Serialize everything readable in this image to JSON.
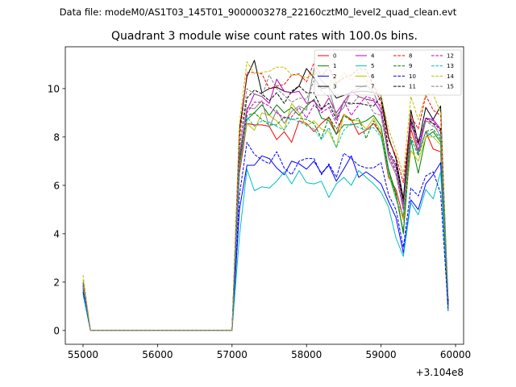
{
  "suptitle": "Data file: modeM0/AS1T03_145T01_9000003278_22160cztM0_level2_quad_clean.evt",
  "chart_data": {
    "type": "line",
    "title": "Quadrant 3 module wise count rates with 100.0s bins.",
    "xlabel": "",
    "ylabel": "",
    "x_offset_text": "+3.104e8",
    "xlim": [
      54762,
      60108
    ],
    "ylim": [
      -0.57,
      11.73
    ],
    "xticks": [
      55000,
      56000,
      57000,
      58000,
      59000,
      60000
    ],
    "yticks": [
      0,
      2,
      4,
      6,
      8,
      10
    ],
    "grid": false,
    "legend_position": "top-right",
    "legend_columns": 4,
    "x": [
      55000,
      55100,
      55200,
      55300,
      55400,
      55500,
      55600,
      55700,
      55800,
      55900,
      56000,
      56100,
      56200,
      56300,
      56400,
      56500,
      56600,
      56700,
      56800,
      56900,
      57000,
      57100,
      57200,
      57300,
      57400,
      57500,
      57600,
      57700,
      57800,
      57900,
      58000,
      58100,
      58200,
      58300,
      58400,
      58500,
      58600,
      58700,
      58800,
      58900,
      59000,
      59100,
      59200,
      59300,
      59400,
      59500,
      59600,
      59700,
      59800,
      59900
    ],
    "series": [
      {
        "name": "0",
        "color": "#ff0000",
        "dash": false,
        "values": [
          1.7,
          0,
          0,
          0,
          0,
          0,
          0,
          0,
          0,
          0,
          0,
          0,
          0,
          0,
          0,
          0,
          0,
          0,
          0,
          0,
          0,
          6.5,
          8.56,
          8.5,
          8.5,
          8.44,
          7.89,
          8.22,
          7.78,
          8.67,
          8.56,
          8.22,
          8.56,
          8.83,
          8.11,
          8.94,
          8.72,
          8.11,
          8.28,
          8.56,
          8.11,
          6.33,
          5.83,
          4.67,
          8.33,
          7.33,
          8.22,
          7.5,
          7.39,
          1.0
        ]
      },
      {
        "name": "1",
        "color": "#008000",
        "dash": false,
        "values": [
          1.8,
          0,
          0,
          0,
          0,
          0,
          0,
          0,
          0,
          0,
          0,
          0,
          0,
          0,
          0,
          0,
          0,
          0,
          0,
          0,
          0,
          7.0,
          8.72,
          9.0,
          9.33,
          8.89,
          9.33,
          9.0,
          9.22,
          8.89,
          9.28,
          9.56,
          8.78,
          8.67,
          8.11,
          8.5,
          8.5,
          8.56,
          8.67,
          8.89,
          8.44,
          6.67,
          5.67,
          4.0,
          7.89,
          6.5,
          8.0,
          8.22,
          7.78,
          1.1
        ]
      },
      {
        "name": "2",
        "color": "#0000ff",
        "dash": false,
        "values": [
          1.6,
          0,
          0,
          0,
          0,
          0,
          0,
          0,
          0,
          0,
          0,
          0,
          0,
          0,
          0,
          0,
          0,
          0,
          0,
          0,
          0,
          5.0,
          6.83,
          6.83,
          7.22,
          7.11,
          6.72,
          6.44,
          7.0,
          6.89,
          6.67,
          7.0,
          6.5,
          6.83,
          6.17,
          6.67,
          7.22,
          6.33,
          6.56,
          6.33,
          6.06,
          5.33,
          4.67,
          3.2,
          5.4,
          5.0,
          6.06,
          6.44,
          6.94,
          0.8
        ]
      },
      {
        "name": "3",
        "color": "#000000",
        "dash": false,
        "values": [
          1.9,
          0,
          0,
          0,
          0,
          0,
          0,
          0,
          0,
          0,
          0,
          0,
          0,
          0,
          0,
          0,
          0,
          0,
          0,
          0,
          0,
          8.3,
          10.5,
          11.17,
          9.83,
          10.0,
          10.06,
          9.89,
          9.83,
          10.11,
          10.83,
          10.44,
          10.0,
          10.06,
          9.61,
          9.72,
          9.83,
          9.89,
          9.89,
          9.83,
          9.72,
          8.0,
          7.11,
          5.44,
          9.11,
          7.72,
          9.22,
          8.72,
          9.28,
          1.0
        ]
      },
      {
        "name": "4",
        "color": "#bf00bf",
        "dash": false,
        "values": [
          1.8,
          0,
          0,
          0,
          0,
          0,
          0,
          0,
          0,
          0,
          0,
          0,
          0,
          0,
          0,
          0,
          0,
          0,
          0,
          0,
          0,
          7.2,
          9.11,
          9.78,
          9.67,
          9.39,
          10.39,
          9.89,
          9.83,
          9.89,
          9.39,
          9.5,
          9.11,
          9.61,
          9.0,
          9.44,
          9.89,
          9.67,
          9.56,
          9.5,
          9.0,
          7.33,
          6.78,
          5.22,
          8.67,
          7.44,
          8.78,
          8.72,
          8.33,
          1.1
        ]
      },
      {
        "name": "5",
        "color": "#00bfbf",
        "dash": false,
        "values": [
          1.5,
          0,
          0,
          0,
          0,
          0,
          0,
          0,
          0,
          0,
          0,
          0,
          0,
          0,
          0,
          0,
          0,
          0,
          0,
          0,
          0,
          3.9,
          6.67,
          5.78,
          5.94,
          5.89,
          6.17,
          6.56,
          6.06,
          6.61,
          6.11,
          6.06,
          6.17,
          5.5,
          6.06,
          6.33,
          6.0,
          6.61,
          6.33,
          6.06,
          5.72,
          5.11,
          3.83,
          3.06,
          5.28,
          4.78,
          5.83,
          5.44,
          6.56,
          0.8
        ]
      },
      {
        "name": "6",
        "color": "#bfbf00",
        "dash": false,
        "values": [
          2.1,
          0,
          0,
          0,
          0,
          0,
          0,
          0,
          0,
          0,
          0,
          0,
          0,
          0,
          0,
          0,
          0,
          0,
          0,
          0,
          0,
          6.8,
          8.56,
          8.28,
          9.0,
          8.89,
          8.67,
          8.28,
          9.39,
          9.0,
          8.44,
          8.67,
          8.33,
          8.22,
          7.56,
          8.94,
          8.67,
          8.67,
          8.33,
          8.78,
          8.22,
          6.44,
          5.44,
          4.56,
          7.44,
          7.0,
          8.0,
          8.0,
          7.67,
          1.2
        ]
      },
      {
        "name": "7",
        "color": "#808080",
        "dash": false,
        "values": [
          1.9,
          0,
          0,
          0,
          0,
          0,
          0,
          0,
          0,
          0,
          0,
          0,
          0,
          0,
          0,
          0,
          0,
          0,
          0,
          0,
          0,
          7.3,
          9.22,
          9.17,
          9.5,
          8.39,
          9.11,
          8.56,
          9.06,
          9.28,
          9.11,
          10.83,
          10.33,
          10.0,
          8.89,
          9.22,
          9.89,
          10.0,
          10.17,
          9.83,
          9.11,
          7.11,
          6.44,
          5.0,
          8.89,
          7.33,
          8.67,
          8.56,
          8.0,
          1.2
        ]
      },
      {
        "name": "8",
        "color": "#ff0000",
        "dash": true,
        "values": [
          1.8,
          0,
          0,
          0,
          0,
          0,
          0,
          0,
          0,
          0,
          0,
          0,
          0,
          0,
          0,
          0,
          0,
          0,
          0,
          0,
          0,
          7.9,
          10.67,
          10.67,
          10.61,
          10.0,
          10.11,
          10.17,
          10.56,
          10.61,
          10.28,
          11.06,
          10.5,
          10.89,
          10.22,
          10.44,
          10.56,
          10.83,
          10.78,
          10.11,
          9.44,
          7.89,
          7.22,
          6.11,
          8.89,
          8.33,
          9.72,
          9.11,
          8.89,
          1.1
        ]
      },
      {
        "name": "9",
        "color": "#008000",
        "dash": true,
        "values": [
          1.9,
          0,
          0,
          0,
          0,
          0,
          0,
          0,
          0,
          0,
          0,
          0,
          0,
          0,
          0,
          0,
          0,
          0,
          0,
          0,
          0,
          6.9,
          8.89,
          9.0,
          8.72,
          8.5,
          8.5,
          8.83,
          8.72,
          8.78,
          8.72,
          8.56,
          7.94,
          8.83,
          8.33,
          8.89,
          8.67,
          8.78,
          7.94,
          8.67,
          8.11,
          6.56,
          5.56,
          4.11,
          8.0,
          7.22,
          8.22,
          8.33,
          7.89,
          1.1
        ]
      },
      {
        "name": "10",
        "color": "#0000ff",
        "dash": true,
        "values": [
          1.6,
          0,
          0,
          0,
          0,
          0,
          0,
          0,
          0,
          0,
          0,
          0,
          0,
          0,
          0,
          0,
          0,
          0,
          0,
          0,
          0,
          5.6,
          7.78,
          7.28,
          7.06,
          6.89,
          7.39,
          6.72,
          6.44,
          7.0,
          7.11,
          7.11,
          6.44,
          6.89,
          6.33,
          7.33,
          7.11,
          6.83,
          6.72,
          6.72,
          6.94,
          5.61,
          5.0,
          3.44,
          5.89,
          5.56,
          6.39,
          6.56,
          5.67,
          0.9
        ]
      },
      {
        "name": "11",
        "color": "#000000",
        "dash": true,
        "values": [
          2.0,
          0,
          0,
          0,
          0,
          0,
          0,
          0,
          0,
          0,
          0,
          0,
          0,
          0,
          0,
          0,
          0,
          0,
          0,
          0,
          0,
          7.6,
          9.61,
          9.94,
          9.78,
          9.5,
          9.83,
          9.39,
          9.89,
          10.11,
          9.83,
          9.83,
          9.17,
          9.39,
          8.72,
          9.44,
          9.39,
          9.39,
          9.33,
          9.28,
          9.67,
          7.44,
          6.89,
          5.33,
          8.72,
          7.78,
          8.78,
          8.56,
          8.33,
          1.2
        ]
      },
      {
        "name": "12",
        "color": "#bf00bf",
        "dash": true,
        "values": [
          1.9,
          0,
          0,
          0,
          0,
          0,
          0,
          0,
          0,
          0,
          0,
          0,
          0,
          0,
          0,
          0,
          0,
          0,
          0,
          0,
          0,
          7.1,
          9.0,
          9.44,
          9.44,
          9.28,
          9.0,
          8.78,
          8.83,
          9.22,
          8.78,
          9.33,
          9.0,
          9.22,
          8.56,
          9.5,
          8.89,
          9.33,
          9.67,
          9.56,
          9.28,
          7.22,
          6.56,
          5.0,
          8.56,
          7.67,
          8.78,
          8.67,
          8.22,
          1.3
        ]
      },
      {
        "name": "13",
        "color": "#00bfbf",
        "dash": true,
        "values": [
          1.8,
          0,
          0,
          0,
          0,
          0,
          0,
          0,
          0,
          0,
          0,
          0,
          0,
          0,
          0,
          0,
          0,
          0,
          0,
          0,
          0,
          6.6,
          8.83,
          8.44,
          8.67,
          8.61,
          8.44,
          8.28,
          8.78,
          8.61,
          8.5,
          8.33,
          7.89,
          8.39,
          7.56,
          8.28,
          8.56,
          8.39,
          8.28,
          8.39,
          8.0,
          6.56,
          5.44,
          4.78,
          7.89,
          7.33,
          8.22,
          8.0,
          8.11,
          1.3
        ]
      },
      {
        "name": "14",
        "color": "#bfbf00",
        "dash": true,
        "values": [
          2.3,
          0,
          0,
          0,
          0,
          0,
          0,
          0,
          0,
          0,
          0,
          0,
          0,
          0,
          0,
          0,
          0,
          0,
          0,
          0,
          0,
          8.6,
          11.11,
          10.61,
          10.67,
          10.72,
          10.89,
          10.89,
          10.56,
          10.56,
          10.44,
          10.61,
          10.56,
          10.39,
          10.17,
          10.67,
          10.33,
          10.67,
          10.33,
          10.11,
          9.72,
          8.33,
          7.44,
          6.44,
          9.67,
          8.72,
          9.78,
          9.78,
          9.0,
          1.6
        ]
      },
      {
        "name": "15",
        "color": "#808080",
        "dash": true,
        "values": [
          2.0,
          0,
          0,
          0,
          0,
          0,
          0,
          0,
          0,
          0,
          0,
          0,
          0,
          0,
          0,
          0,
          0,
          0,
          0,
          0,
          0,
          7.5,
          10.0,
          9.78,
          9.67,
          10.56,
          10.0,
          9.72,
          9.44,
          9.61,
          9.56,
          10.33,
          9.89,
          9.67,
          8.78,
          9.44,
          9.33,
          9.67,
          9.56,
          9.0,
          8.89,
          7.22,
          6.67,
          5.11,
          8.44,
          7.89,
          8.67,
          8.44,
          8.22,
          1.4
        ]
      }
    ]
  }
}
